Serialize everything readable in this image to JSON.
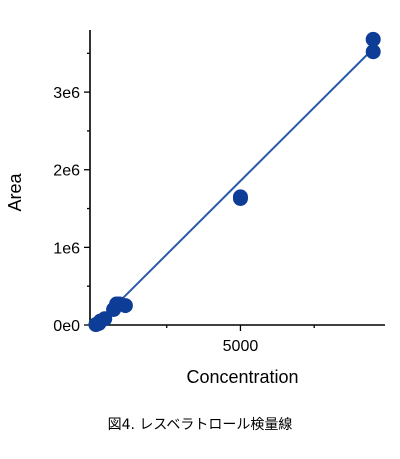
{
  "chart_data": {
    "type": "scatter",
    "xlabel": "Concentration",
    "ylabel": "Area",
    "xlim": [
      -100,
      9900
    ],
    "ylim": [
      0,
      3800000
    ],
    "x_ticks": [
      {
        "value": 5000,
        "label": "5000"
      }
    ],
    "y_ticks": [
      {
        "value": 0,
        "label": "0e0"
      },
      {
        "value": 1000000,
        "label": "1e6"
      },
      {
        "value": 2000000,
        "label": "2e6"
      },
      {
        "value": 3000000,
        "label": "3e6"
      }
    ],
    "points": [
      {
        "x": 100,
        "y": 5000
      },
      {
        "x": 200,
        "y": 20000
      },
      {
        "x": 250,
        "y": 50000
      },
      {
        "x": 400,
        "y": 80000
      },
      {
        "x": 700,
        "y": 200000
      },
      {
        "x": 800,
        "y": 270000
      },
      {
        "x": 900,
        "y": 270000
      },
      {
        "x": 1100,
        "y": 250000
      },
      {
        "x": 5000,
        "y": 1630000
      },
      {
        "x": 5000,
        "y": 1650000
      },
      {
        "x": 9500,
        "y": 3520000
      },
      {
        "x": 9500,
        "y": 3680000
      }
    ],
    "fit_line": {
      "x": [
        100,
        9500
      ],
      "y": [
        0,
        3560000
      ]
    },
    "grid": false,
    "colors": {
      "points": "#0d3d96",
      "fit_line": "#2a5aa8",
      "axes": "#000000"
    }
  },
  "caption": "図4.  レスベラトロール検量線"
}
